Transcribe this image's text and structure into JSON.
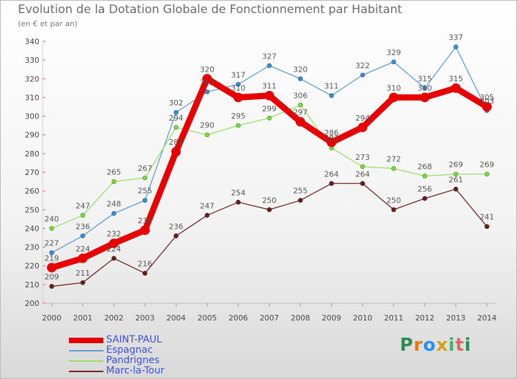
{
  "chart_data": {
    "type": "line",
    "title": "Evolution de la Dotation Globale de Fonctionnement par Habitant",
    "subtitle": "(en € et par an)",
    "x": [
      "2000",
      "2001",
      "2002",
      "2003",
      "2004",
      "2005",
      "2006",
      "2007",
      "2008",
      "2009",
      "2010",
      "2011",
      "2012",
      "2013",
      "2014"
    ],
    "ylim": [
      200,
      340
    ],
    "yticks": [
      200,
      210,
      220,
      230,
      240,
      250,
      260,
      270,
      280,
      290,
      300,
      310,
      320,
      330,
      340
    ],
    "grid": false,
    "legend_position": "bottom-left",
    "series": [
      {
        "name": "SAINT-PAUL",
        "color": "#e60000",
        "values": [
          219,
          224,
          232,
          239,
          281,
          320,
          310,
          311,
          297,
          286,
          294,
          310,
          310,
          315,
          305
        ]
      },
      {
        "name": "Espagnac",
        "color": "#5b9bd5",
        "values": [
          227,
          236,
          248,
          255,
          302,
          313,
          317,
          327,
          320,
          311,
          322,
          329,
          315,
          337,
          303
        ]
      },
      {
        "name": "Pandrignes",
        "color": "#99dd66",
        "values": [
          240,
          247,
          265,
          267,
          294,
          290,
          295,
          299,
          306,
          283,
          273,
          272,
          268,
          269,
          269
        ]
      },
      {
        "name": "Marc-la-Tour",
        "color": "#6b2020",
        "values": [
          209,
          211,
          224,
          216,
          236,
          247,
          254,
          250,
          255,
          264,
          264,
          250,
          256,
          261,
          241
        ]
      }
    ]
  },
  "logo": {
    "letters": [
      "P",
      "r",
      "o",
      "x",
      "i",
      "t",
      "i"
    ],
    "colors": [
      "#2e8b57",
      "#e07b1a",
      "#1e90ff",
      "#d4a017",
      "#3cb371",
      "#e06666",
      "#2e8b57"
    ]
  }
}
